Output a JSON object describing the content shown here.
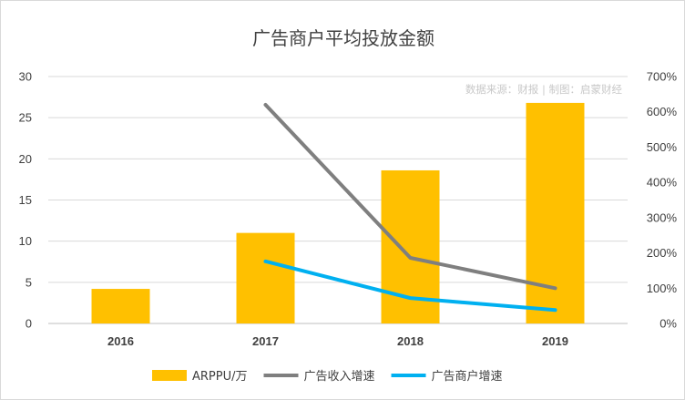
{
  "chart_data": {
    "type": "bar+line",
    "title": "广告商户平均投放金额",
    "source_note": "数据来源：财报 | 制图：启蒙财经",
    "categories": [
      "2016",
      "2017",
      "2018",
      "2019"
    ],
    "bar_series": {
      "name": "ARPPU/万",
      "color": "#FFC000",
      "values": [
        4.2,
        11.0,
        18.6,
        26.8
      ],
      "axis": "left"
    },
    "line_series": [
      {
        "name": "广告收入增速",
        "color": "#7F7F7F",
        "values": [
          null,
          620,
          186,
          100
        ],
        "axis": "right"
      },
      {
        "name": "广告商户增速",
        "color": "#00B0F0",
        "values": [
          null,
          176,
          72,
          38
        ],
        "axis": "right"
      }
    ],
    "y_left": {
      "min": 0,
      "max": 30,
      "ticks": [
        "0",
        "5",
        "10",
        "15",
        "20",
        "25",
        "30"
      ]
    },
    "y_right": {
      "min": 0,
      "max": 700,
      "ticks": [
        "0%",
        "100%",
        "200%",
        "300%",
        "400%",
        "500%",
        "600%",
        "700%"
      ]
    },
    "grid": true,
    "legend_position": "bottom"
  }
}
